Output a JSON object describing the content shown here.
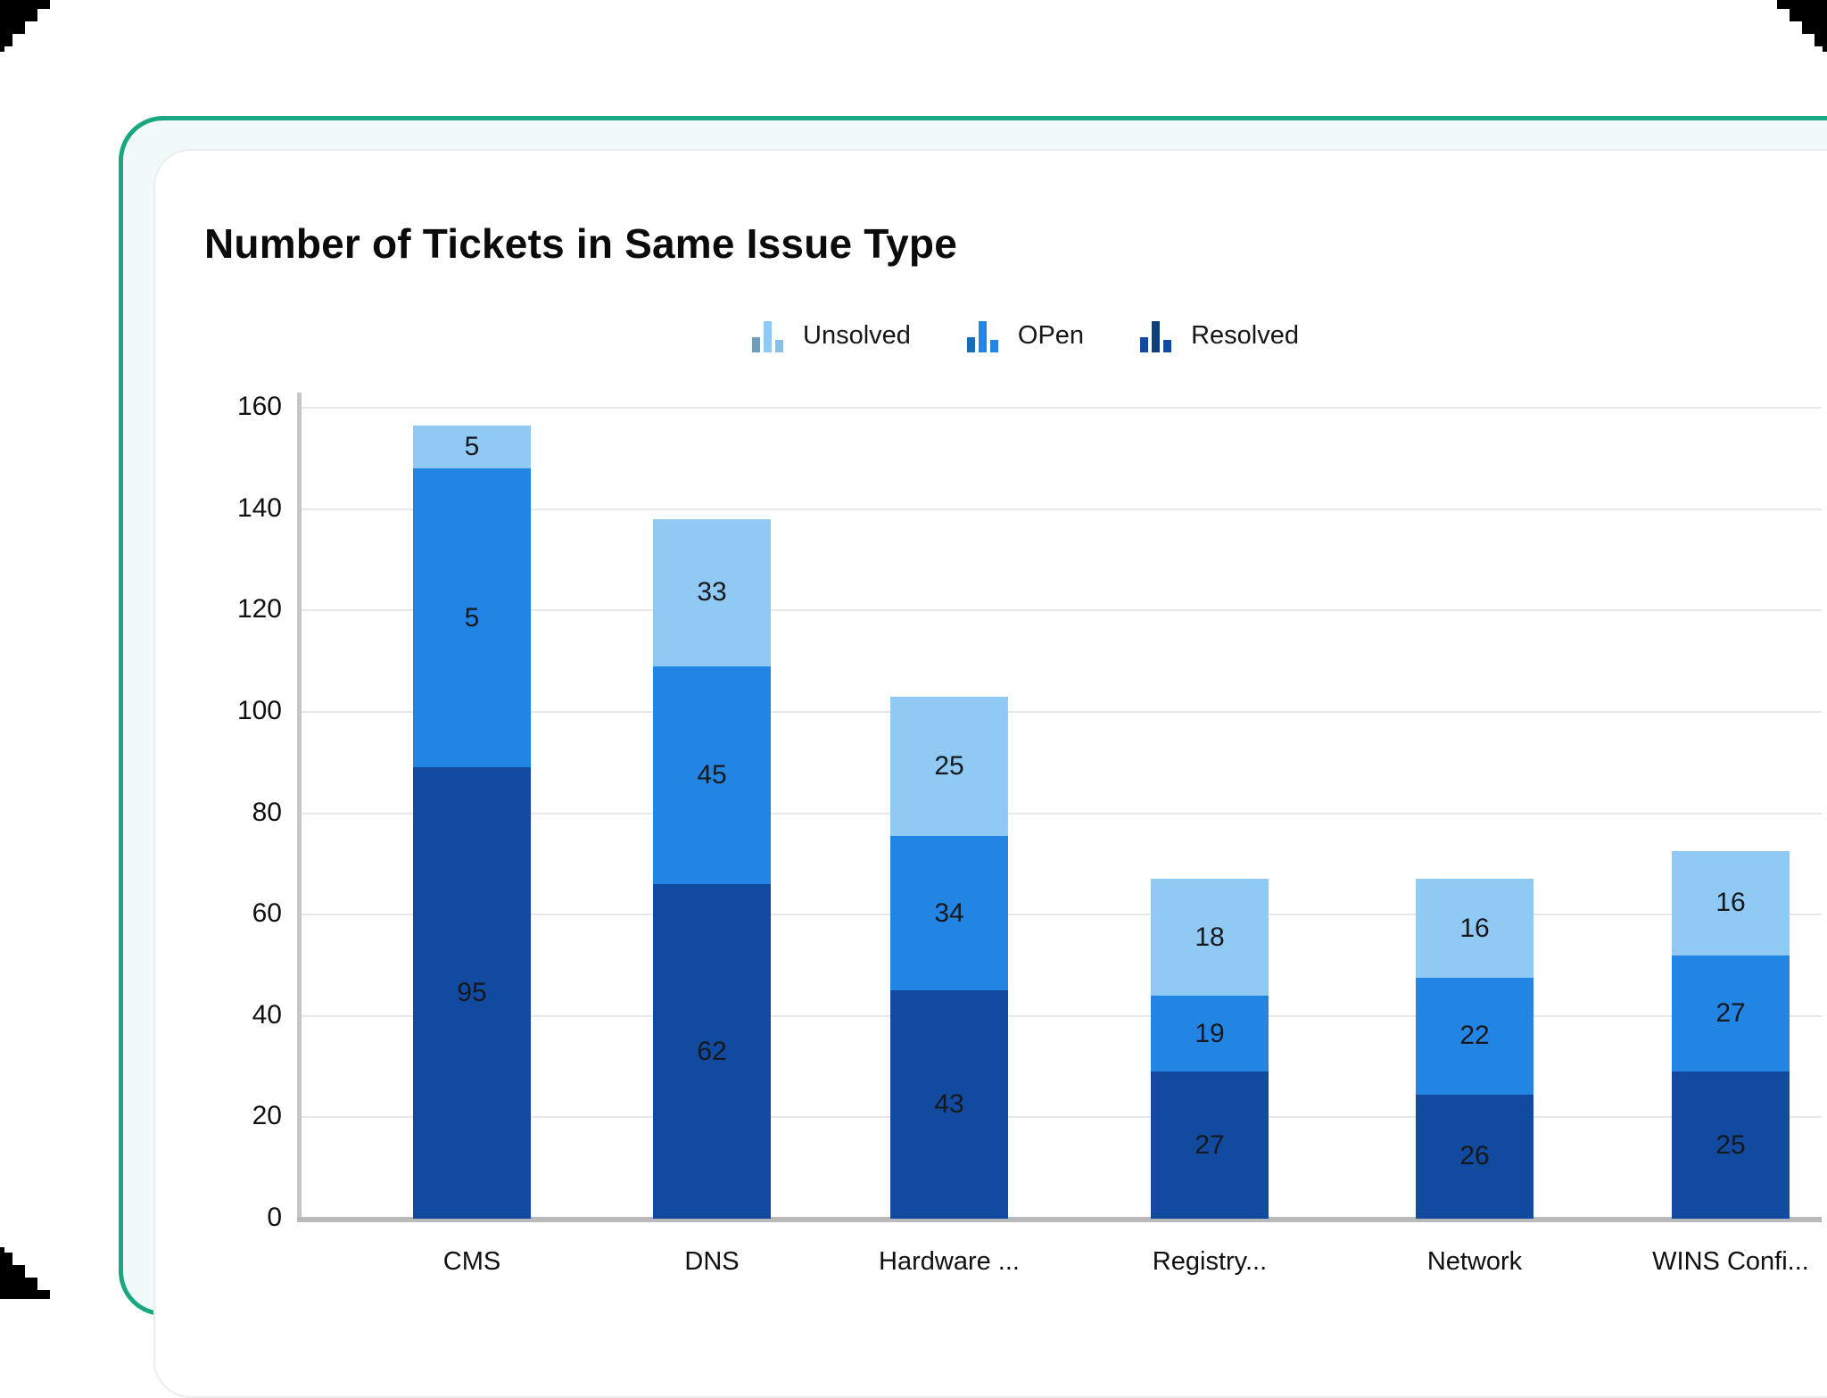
{
  "frame": {
    "border_color": "#18A77E",
    "inner_background": "#F1FAF8",
    "card_background": "#FFFFFF"
  },
  "chart_data": {
    "type": "bar",
    "variant": "stacked",
    "title": "Number of Tickets in Same Issue Type",
    "categories": [
      "CMS",
      "DNS",
      "Hardware ...",
      "Registry...",
      "Network",
      "WINS Confi..."
    ],
    "series": [
      {
        "name": "Unsolved",
        "color": "#8FC9F4",
        "values": [
          5,
          33,
          25,
          18,
          16,
          16
        ]
      },
      {
        "name": "OPen",
        "color": "#2285E4",
        "values": [
          5,
          45,
          34,
          19,
          22,
          27
        ]
      },
      {
        "name": "Resolved",
        "color": "#114A9E",
        "values": [
          95,
          62,
          43,
          27,
          26,
          25
        ]
      }
    ],
    "bars": [
      {
        "category": "CMS",
        "segments": [
          {
            "series": "Resolved",
            "value": 95,
            "from": 0,
            "to": 89
          },
          {
            "series": "OPen",
            "value": 5,
            "from": 89,
            "to": 148
          },
          {
            "series": "Unsolved",
            "value": 5,
            "from": 148,
            "to": 156.5
          }
        ]
      },
      {
        "category": "DNS",
        "segments": [
          {
            "series": "Resolved",
            "value": 62,
            "from": 0,
            "to": 66
          },
          {
            "series": "OPen",
            "value": 45,
            "from": 66,
            "to": 109
          },
          {
            "series": "Unsolved",
            "value": 33,
            "from": 109,
            "to": 138
          }
        ]
      },
      {
        "category": "Hardware ...",
        "segments": [
          {
            "series": "Resolved",
            "value": 43,
            "from": 0,
            "to": 45
          },
          {
            "series": "OPen",
            "value": 34,
            "from": 45,
            "to": 75.5
          },
          {
            "series": "Unsolved",
            "value": 25,
            "from": 75.5,
            "to": 103
          }
        ]
      },
      {
        "category": "Registry...",
        "segments": [
          {
            "series": "Resolved",
            "value": 27,
            "from": 0,
            "to": 29
          },
          {
            "series": "OPen",
            "value": 19,
            "from": 29,
            "to": 44
          },
          {
            "series": "Unsolved",
            "value": 18,
            "from": 44,
            "to": 67
          }
        ]
      },
      {
        "category": "Network",
        "segments": [
          {
            "series": "Resolved",
            "value": 26,
            "from": 0,
            "to": 24.5
          },
          {
            "series": "OPen",
            "value": 22,
            "from": 24.5,
            "to": 47.5
          },
          {
            "series": "Unsolved",
            "value": 16,
            "from": 47.5,
            "to": 67
          }
        ]
      },
      {
        "category": "WINS Confi...",
        "segments": [
          {
            "series": "Resolved",
            "value": 25,
            "from": 0,
            "to": 29
          },
          {
            "series": "OPen",
            "value": 27,
            "from": 29,
            "to": 52
          },
          {
            "series": "Unsolved",
            "value": 16,
            "from": 52,
            "to": 72.5
          }
        ]
      }
    ],
    "ylim": [
      0,
      160
    ],
    "yticks": [
      0,
      20,
      40,
      60,
      80,
      100,
      120,
      140,
      160
    ],
    "xlabel": "",
    "ylabel": "",
    "grid": true,
    "legend_position": "top-center",
    "axis_color": "#C6C6C6",
    "grid_color": "#E8E8E8"
  }
}
